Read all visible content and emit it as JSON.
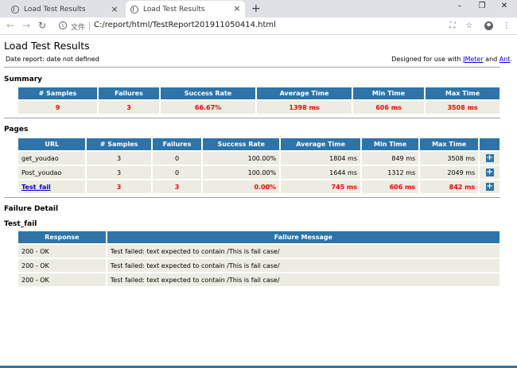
{
  "browser": {
    "tabs": [
      {
        "label": "Load Test Results"
      },
      {
        "label": "Load Test Results"
      }
    ],
    "tab_close_glyph": "×",
    "new_tab_glyph": "+",
    "window": {
      "minimize": "–",
      "maximize": "❐",
      "close": "✕"
    },
    "nav": {
      "back": "←",
      "forward": "→",
      "reload": "↻"
    },
    "address": {
      "label": "文件",
      "url": "C:/report/html/TestReport201911050414.html"
    },
    "icons": [
      "translate-icon",
      "star-icon",
      "profile-icon",
      "menu-icon"
    ],
    "toolbar_glyphs": {
      "translate": "⛶",
      "star": "☆",
      "menu": "⋮"
    }
  },
  "report": {
    "title": "Load Test Results",
    "date_report": "Date report: date not defined",
    "designed_prefix": "Designed for use with ",
    "designed_link1": "JMeter",
    "designed_mid": " and ",
    "designed_link2": "Ant",
    "designed_suffix": ".",
    "summary": {
      "heading": "Summary",
      "headers": [
        "# Samples",
        "Failures",
        "Success Rate",
        "Average Time",
        "Min Time",
        "Max Time"
      ],
      "values": [
        "9",
        "3",
        "66.67%",
        "1398 ms",
        "606 ms",
        "3508 ms"
      ]
    },
    "pages": {
      "heading": "Pages",
      "headers": [
        "URL",
        "# Samples",
        "Failures",
        "Success Rate",
        "Average Time",
        "Min Time",
        "Max Time",
        ""
      ],
      "rows": [
        {
          "url": "get_youdao",
          "samples": "3",
          "failures": "0",
          "rate": "100.00%",
          "avg": "1804 ms",
          "min": "849 ms",
          "max": "3508 ms"
        },
        {
          "url": "Post_youdao",
          "samples": "3",
          "failures": "0",
          "rate": "100.00%",
          "avg": "1644 ms",
          "min": "1312 ms",
          "max": "2049 ms"
        },
        {
          "url": "Test_fail",
          "samples": "3",
          "failures": "3",
          "rate": "0.00%",
          "avg": "745 ms",
          "min": "606 ms",
          "max": "842 ms"
        }
      ],
      "expand_glyph": "+"
    },
    "failure_detail": {
      "heading": "Failure Detail",
      "subheading": "Test_fail",
      "headers": [
        "Response",
        "Failure Message"
      ],
      "rows": [
        {
          "response": "200 - OK",
          "message": "Test failed: text expected to contain /This is fail case/"
        },
        {
          "response": "200 - OK",
          "message": "Test failed: text expected to contain /This is fail case/"
        },
        {
          "response": "200 - OK",
          "message": "Test failed: text expected to contain /This is fail case/"
        }
      ]
    }
  },
  "colors": {
    "header_bg": "#2e74a8",
    "cell_bg": "#ecece2",
    "fail_red": "#ff0000",
    "link_blue": "#0000ee"
  }
}
